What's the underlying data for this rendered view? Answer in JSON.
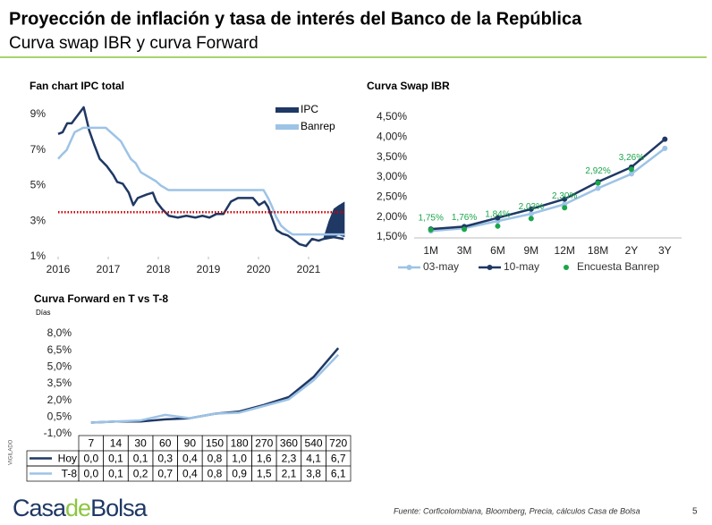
{
  "header": {
    "title": "Proyección de inflación y tasa de interés del Banco de la República",
    "subtitle": "Curva swap IBR y curva Forward"
  },
  "chart_data": [
    {
      "type": "line",
      "title": "Fan chart IPC total",
      "xlim": [
        2016,
        2021.75
      ],
      "xticks": [
        2016,
        2017,
        2018,
        2019,
        2020,
        2021
      ],
      "ylim": [
        1,
        9.5
      ],
      "yticks": [
        {
          "value": 1,
          "label": "1%"
        },
        {
          "value": 3,
          "label": "3%"
        },
        {
          "value": 5,
          "label": "5%"
        },
        {
          "value": 7,
          "label": "7%"
        },
        {
          "value": 9,
          "label": "9%"
        }
      ],
      "legend": "top-right",
      "series": [
        {
          "name": "IPC",
          "color": "#1f3864",
          "x": [
            2016.0,
            2016.09,
            2016.18,
            2016.27,
            2016.35,
            2016.51,
            2016.62,
            2016.72,
            2016.83,
            2016.97,
            2017.1,
            2017.18,
            2017.29,
            2017.41,
            2017.5,
            2017.59,
            2017.77,
            2017.89,
            2017.96,
            2018.07,
            2018.21,
            2018.39,
            2018.56,
            2018.74,
            2018.88,
            2019.02,
            2019.16,
            2019.3,
            2019.45,
            2019.59,
            2019.76,
            2019.89,
            2020.01,
            2020.12,
            2020.19,
            2020.28,
            2020.36,
            2020.47,
            2020.58,
            2020.68,
            2020.82,
            2020.95,
            2021.07,
            2021.2,
            2021.3,
            2021.5,
            2021.7
          ],
          "values": [
            7.9,
            8.0,
            8.5,
            8.5,
            8.8,
            9.4,
            8.1,
            7.3,
            6.5,
            6.1,
            5.6,
            5.2,
            5.1,
            4.6,
            3.9,
            4.3,
            4.5,
            4.6,
            4.1,
            3.7,
            3.3,
            3.2,
            3.3,
            3.2,
            3.3,
            3.2,
            3.4,
            3.4,
            4.1,
            4.3,
            4.3,
            4.3,
            3.9,
            4.1,
            3.8,
            3.1,
            2.5,
            2.3,
            2.2,
            2.0,
            1.7,
            1.6,
            2.0,
            1.9,
            2.0,
            2.1,
            2.0
          ]
        },
        {
          "name": "Banrep",
          "color": "#9dc3e6",
          "x": [
            2016.0,
            2016.08,
            2016.17,
            2016.25,
            2016.33,
            2016.5,
            2016.95,
            2017.05,
            2017.15,
            2017.25,
            2017.35,
            2017.45,
            2017.55,
            2017.65,
            2017.8,
            2017.95,
            2018.05,
            2018.2,
            2020.1,
            2020.2,
            2020.28,
            2020.35,
            2020.45,
            2020.55,
            2020.68,
            2021.72
          ],
          "values": [
            6.5,
            6.75,
            7.0,
            7.5,
            8.0,
            8.25,
            8.25,
            8.0,
            7.75,
            7.5,
            7.0,
            6.5,
            6.25,
            5.75,
            5.5,
            5.25,
            5.0,
            4.75,
            4.75,
            4.25,
            3.75,
            3.25,
            2.75,
            2.5,
            2.25,
            2.25
          ]
        }
      ],
      "band": {
        "color": "#1f3864",
        "x": [
          2021.3,
          2021.4,
          2021.5,
          2021.6,
          2021.72
        ],
        "upper": [
          2.1,
          3.0,
          3.7,
          3.9,
          4.1
        ],
        "lower": [
          2.0,
          2.05,
          2.1,
          2.2,
          2.1
        ]
      },
      "reference_line": {
        "value": 3.5,
        "color": "#cc0000"
      }
    },
    {
      "type": "line",
      "title": "Curva Swap IBR",
      "categories": [
        "1M",
        "3M",
        "6M",
        "9M",
        "12M",
        "18M",
        "2Y",
        "3Y"
      ],
      "ylim": [
        1.5,
        4.5
      ],
      "yticks": [
        {
          "value": 1.5,
          "label": "1,50%"
        },
        {
          "value": 2,
          "label": "2,00%"
        },
        {
          "value": 2.5,
          "label": "2,50%"
        },
        {
          "value": 3,
          "label": "3,00%"
        },
        {
          "value": 3.5,
          "label": "3,50%"
        },
        {
          "value": 4,
          "label": "4,00%"
        },
        {
          "value": 4.5,
          "label": "4,50%"
        }
      ],
      "legend": "bottom",
      "series": [
        {
          "name": "03-may",
          "color": "#9dc3e6",
          "values": [
            1.65,
            1.72,
            1.9,
            2.08,
            2.32,
            2.72,
            3.08,
            3.72
          ]
        },
        {
          "name": "10-may",
          "color": "#1f3864",
          "values": [
            1.7,
            1.76,
            1.98,
            2.2,
            2.45,
            2.88,
            3.25,
            3.95
          ]
        },
        {
          "name": "Encuesta Banrep",
          "color": "#1aa64a",
          "style": "markers",
          "values": [
            1.75,
            1.76,
            1.84,
            2.03,
            2.3,
            2.92,
            3.26,
            null
          ],
          "value_labels": [
            "1,75%",
            "1,76%",
            "1,84%",
            "2,03%",
            "2,30%",
            "2,92%",
            "3,26%",
            null
          ]
        }
      ]
    },
    {
      "type": "line",
      "title": "Curva Forward en T vs T-8",
      "unit_label": "Días",
      "categories": [
        "7",
        "14",
        "30",
        "60",
        "90",
        "150",
        "180",
        "270",
        "360",
        "540",
        "720"
      ],
      "ylim": [
        -1,
        8
      ],
      "yticks": [
        {
          "value": -1,
          "label": "-1,0%"
        },
        {
          "value": 0.5,
          "label": "0,5%"
        },
        {
          "value": 2,
          "label": "2,0%"
        },
        {
          "value": 3.5,
          "label": "3,5%"
        },
        {
          "value": 5,
          "label": "5,0%"
        },
        {
          "value": 6.5,
          "label": "6,5%"
        },
        {
          "value": 8,
          "label": "8,0%"
        }
      ],
      "legend": "table",
      "series": [
        {
          "name": "Hoy",
          "color": "#1f3864",
          "values": [
            0.0,
            0.1,
            0.1,
            0.3,
            0.4,
            0.8,
            1.0,
            1.6,
            2.3,
            4.1,
            6.7
          ],
          "value_labels": [
            "0,0",
            "0,1",
            "0,1",
            "0,3",
            "0,4",
            "0,8",
            "1,0",
            "1,6",
            "2,3",
            "4,1",
            "6,7"
          ]
        },
        {
          "name": "T-8",
          "color": "#9dc3e6",
          "values": [
            0.0,
            0.1,
            0.2,
            0.7,
            0.4,
            0.8,
            0.9,
            1.5,
            2.1,
            3.8,
            6.1
          ],
          "value_labels": [
            "0,0",
            "0,1",
            "0,2",
            "0,7",
            "0,4",
            "0,8",
            "0,9",
            "1,5",
            "2,1",
            "3,8",
            "6,1"
          ]
        }
      ]
    }
  ],
  "footer": {
    "logo": [
      "Casa",
      "de",
      "Bolsa"
    ],
    "vigilado": "VIGILADO",
    "source": "Fuente: Corficolombiana, Bloomberg, Precia, cálculos Casa de Bolsa",
    "page": "5"
  }
}
